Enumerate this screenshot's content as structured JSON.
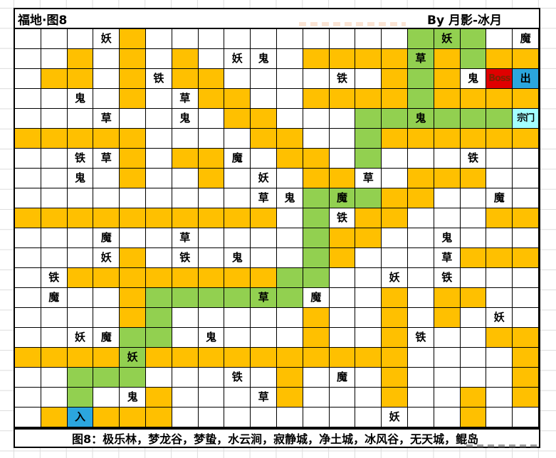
{
  "header": {
    "title": "福地·图8",
    "credit": "By 月影-冰月"
  },
  "caption": "图8：极乐林，梦龙谷，梦蛰，水云涧，寂静城，净土城，冰风谷，无天城，鲲岛",
  "palette": {
    "white": "#ffffff",
    "orange": "#ffc000",
    "green": "#92d050",
    "red": "#e00000",
    "blue": "#2ba6de",
    "cyan": "#a3ffff",
    "bossText": "#802000"
  },
  "cell_legend": {
    "妖": "monster-yao",
    "鬼": "monster-gui",
    "魔": "monster-mo",
    "铁": "iron-node",
    "草": "herb-node",
    "Boss": "boss-cell",
    "出": "exit-cell",
    "入": "entrance-cell",
    "宗门": "sect-gate-cell"
  },
  "grid": {
    "cols": 20,
    "rows": 20,
    "cells": [
      [
        "w",
        "w",
        "w",
        "w:妖",
        "o",
        "w",
        "w",
        "w",
        "w",
        "w",
        "w",
        "w",
        "w",
        "w",
        "w",
        "g",
        "g:妖",
        "g",
        "w",
        "w:魔"
      ],
      [
        "w",
        "w",
        "o",
        "w",
        "o",
        "w",
        "o",
        "w",
        "w:妖",
        "w:鬼",
        "w",
        "o",
        "o",
        "o",
        "o",
        "g:草",
        "o",
        "g",
        "o",
        "o"
      ],
      [
        "w",
        "o",
        "o",
        "w",
        "o",
        "w:铁",
        "o",
        "o",
        "w",
        "w",
        "w",
        "w",
        "w:铁",
        "w",
        "o",
        "g",
        "o",
        "w:鬼",
        "r:Boss",
        "b:出"
      ],
      [
        "w",
        "w",
        "w:鬼",
        "w",
        "o",
        "w",
        "w:草",
        "o",
        "o",
        "w",
        "w",
        "o",
        "o",
        "o",
        "o",
        "g",
        "o",
        "o",
        "o",
        "o"
      ],
      [
        "w",
        "w",
        "w",
        "w:草",
        "w",
        "w",
        "w:鬼",
        "w",
        "o",
        "o",
        "w",
        "w",
        "w",
        "g",
        "g",
        "g:鬼",
        "g",
        "g",
        "g",
        "c:宗门"
      ],
      [
        "o",
        "o",
        "o",
        "o",
        "o",
        "w",
        "w",
        "w",
        "w",
        "o",
        "o",
        "w",
        "w",
        "g",
        "o",
        "o",
        "o",
        "o",
        "o",
        "o"
      ],
      [
        "w",
        "w",
        "w:铁",
        "w:草",
        "o",
        "w",
        "o",
        "o",
        "w:魔",
        "w",
        "o",
        "o",
        "w",
        "g",
        "w",
        "w",
        "w",
        "w:铁",
        "w",
        "w"
      ],
      [
        "w",
        "w",
        "w:鬼",
        "w",
        "o",
        "w",
        "w",
        "o",
        "w",
        "w:妖",
        "w",
        "o",
        "o",
        "w:草",
        "w",
        "o",
        "o",
        "o",
        "w",
        "w"
      ],
      [
        "w",
        "w",
        "w",
        "w",
        "w",
        "w",
        "w",
        "w",
        "w",
        "w:草",
        "w:鬼",
        "g",
        "g:魔",
        "g",
        "o",
        "o",
        "w",
        "w",
        "w:魔",
        "w"
      ],
      [
        "o",
        "o",
        "o",
        "o",
        "o",
        "o",
        "o",
        "o",
        "o",
        "o",
        "w",
        "g",
        "w:铁",
        "o",
        "o",
        "w",
        "w",
        "w",
        "o",
        "o"
      ],
      [
        "w",
        "w",
        "w",
        "w:魔",
        "w",
        "w",
        "w:草",
        "w",
        "w",
        "w",
        "w",
        "g",
        "o",
        "o",
        "w",
        "w",
        "w:鬼",
        "w",
        "w",
        "w"
      ],
      [
        "w",
        "w",
        "w",
        "w:妖",
        "o",
        "w",
        "w:铁",
        "w",
        "w:鬼",
        "w",
        "w",
        "g",
        "o",
        "w",
        "w",
        "w",
        "w:草",
        "o",
        "o",
        "o"
      ],
      [
        "w",
        "w:铁",
        "o",
        "o",
        "o",
        "o",
        "o",
        "o",
        "o",
        "o",
        "g",
        "g",
        "w",
        "w",
        "w:妖",
        "w",
        "w:铁",
        "w",
        "w",
        "w"
      ],
      [
        "w",
        "w:魔",
        "w",
        "w",
        "o",
        "g",
        "g",
        "g",
        "g",
        "g:草",
        "g",
        "w:魔",
        "w",
        "w",
        "o",
        "w",
        "o",
        "o",
        "w",
        "w"
      ],
      [
        "w",
        "w",
        "w",
        "w",
        "o",
        "g",
        "w",
        "w",
        "w",
        "w",
        "w",
        "o",
        "w",
        "w",
        "o",
        "w",
        "o",
        "w",
        "w:妖",
        "w"
      ],
      [
        "w",
        "w",
        "w:妖",
        "w:魔",
        "g",
        "g",
        "w",
        "w:鬼",
        "w",
        "w",
        "w",
        "o",
        "w",
        "w",
        "o",
        "w:铁",
        "w",
        "w",
        "o",
        "o"
      ],
      [
        "o",
        "o",
        "o",
        "o",
        "g:妖",
        "o",
        "o",
        "o",
        "o",
        "o",
        "o",
        "o",
        "o",
        "o",
        "o",
        "w",
        "w",
        "w",
        "w",
        "o"
      ],
      [
        "w",
        "w",
        "g",
        "g",
        "g",
        "w",
        "w",
        "w",
        "w:铁",
        "w",
        "o",
        "w",
        "w:魔",
        "w",
        "o",
        "w",
        "w",
        "w",
        "w",
        "o"
      ],
      [
        "w",
        "w",
        "g",
        "w",
        "w:鬼",
        "o",
        "w",
        "w",
        "w",
        "w:草",
        "o",
        "w",
        "w",
        "w",
        "o",
        "w",
        "w",
        "o",
        "w",
        "o"
      ],
      [
        "w",
        "o",
        "b:入",
        "o",
        "o",
        "o",
        "w",
        "w",
        "w",
        "w",
        "w",
        "w",
        "w",
        "w",
        "w:妖",
        "w",
        "w",
        "o",
        "w",
        "w"
      ]
    ]
  }
}
